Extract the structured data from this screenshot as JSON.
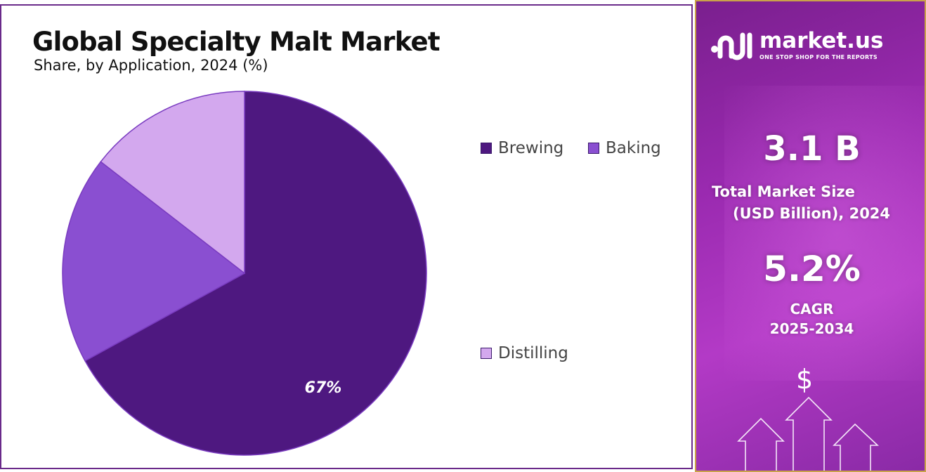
{
  "title": "Global Specialty Malt Market",
  "subtitle": "Share, by Application, 2024 (%)",
  "chart_data": {
    "type": "pie",
    "title": "Global Specialty Malt Market",
    "subtitle": "Share, by Application, 2024 (%)",
    "slices": [
      {
        "label": "Brewing",
        "value": 67,
        "color": "#4e1880"
      },
      {
        "label": "Baking",
        "value": 18.5,
        "color": "#8a4fd1"
      },
      {
        "label": "Distilling",
        "value": 14.5,
        "color": "#d3a8ee"
      }
    ],
    "data_labels": [
      "67%"
    ],
    "legend_placement": "right"
  },
  "legend": [
    {
      "label": "Brewing",
      "color": "#4e1880"
    },
    {
      "label": "Baking",
      "color": "#8a4fd1"
    },
    {
      "label": "Distilling",
      "color": "#d3a8ee"
    }
  ],
  "side_panel": {
    "logo_name": "market.us",
    "logo_tagline": "ONE STOP SHOP FOR THE REPORTS",
    "market_size_value": "3.1 B",
    "market_size_label_line1": "Total Market Size",
    "market_size_label_line2": "(USD Billion), 2024",
    "cagr_value": "5.2%",
    "cagr_label_line1": "CAGR",
    "cagr_label_line2": "2025-2034",
    "dollar_symbol": "$",
    "icons": [
      "logo-icon",
      "dollar-icon",
      "arrow-up-icon"
    ]
  }
}
